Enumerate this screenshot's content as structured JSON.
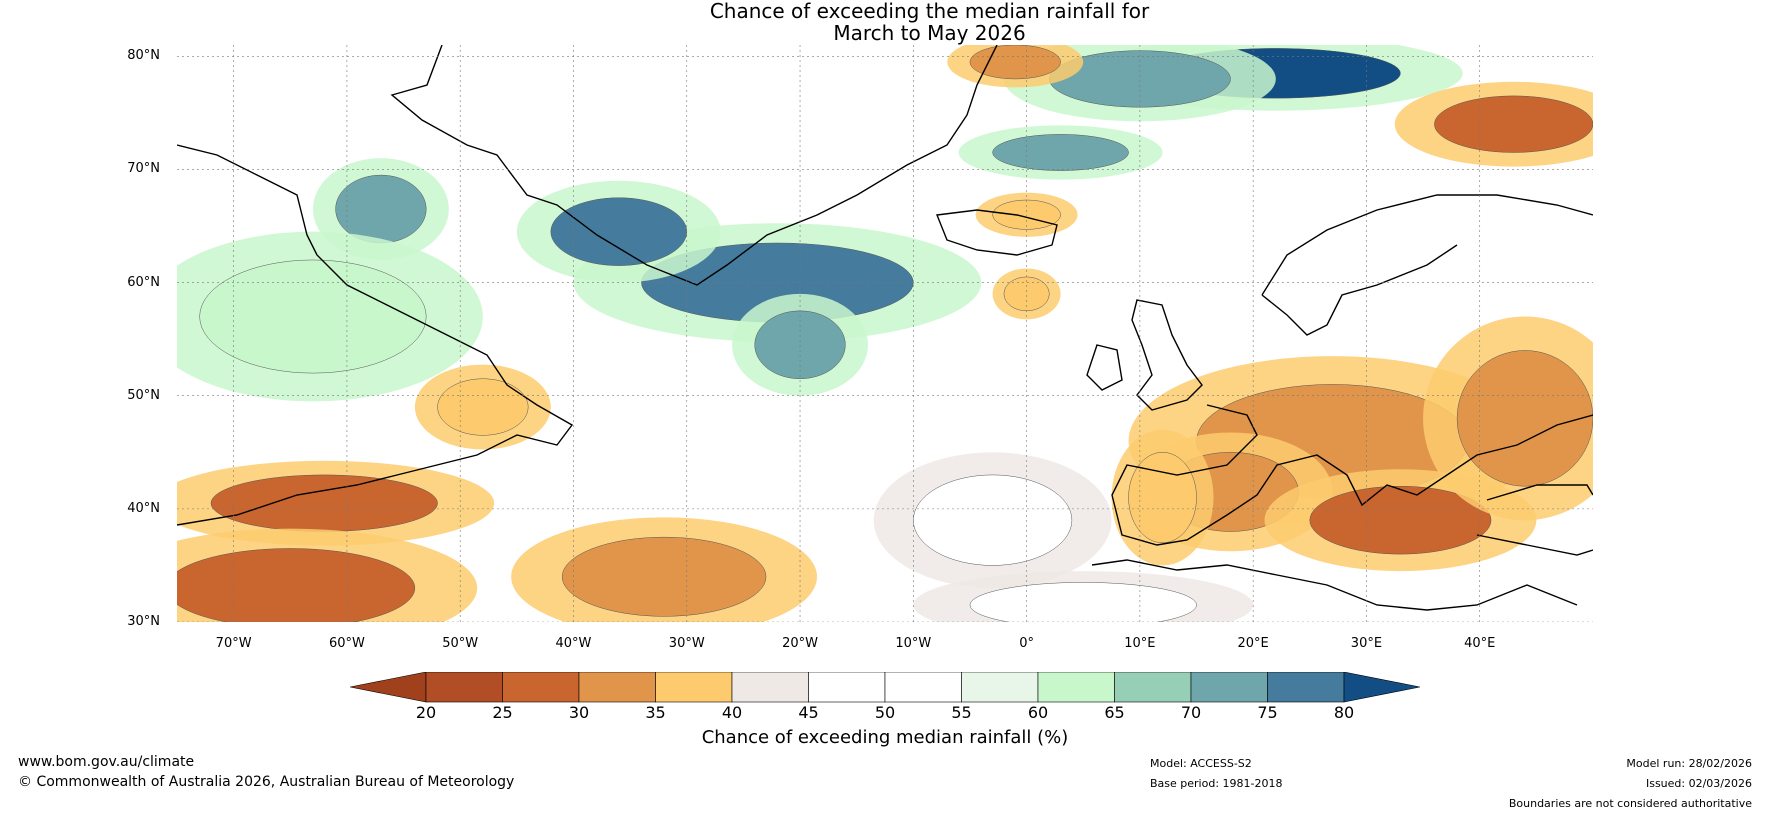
{
  "title": {
    "line1": "Chance of exceeding the median rainfall for",
    "line2": "March to May 2026"
  },
  "map": {
    "lat_labels": [
      "80°N",
      "70°N",
      "60°N",
      "50°N",
      "40°N",
      "30°N"
    ],
    "lon_labels": [
      "70°W",
      "60°W",
      "50°W",
      "40°W",
      "30°W",
      "20°W",
      "10°W",
      "0°",
      "10°E",
      "20°E",
      "30°E",
      "40°E"
    ],
    "lat_range": [
      30,
      81
    ],
    "lon_range": [
      -75,
      50
    ],
    "regions": [
      {
        "name": "greenland-sea-wet",
        "category": 80,
        "lon": 22,
        "lat": 78.5,
        "rx": 11,
        "ry": 2.2
      },
      {
        "name": "svalbard-wet",
        "category": 70,
        "lon": 10,
        "lat": 78,
        "rx": 8,
        "ry": 2.5
      },
      {
        "name": "norwegian-sea-wet",
        "category": 70,
        "lon": 3,
        "lat": 71.5,
        "rx": 6,
        "ry": 1.6
      },
      {
        "name": "iceland-basin-wet",
        "category": 75,
        "lon": -22,
        "lat": 60,
        "rx": 12,
        "ry": 3.5
      },
      {
        "name": "irminger-sea-wet",
        "category": 75,
        "lon": -36,
        "lat": 64.5,
        "rx": 6,
        "ry": 3
      },
      {
        "name": "baffin-wet",
        "category": 70,
        "lon": -57,
        "lat": 66.5,
        "rx": 4,
        "ry": 3
      },
      {
        "name": "rockall-wet",
        "category": 70,
        "lon": -20,
        "lat": 54.5,
        "rx": 4,
        "ry": 3
      },
      {
        "name": "labrador-wet",
        "category": 60,
        "lon": -63,
        "lat": 57,
        "rx": 10,
        "ry": 5
      },
      {
        "name": "barents-dry",
        "category": 25,
        "lon": 43,
        "lat": 74,
        "rx": 7,
        "ry": 2.5
      },
      {
        "name": "east-greenland-dry",
        "category": 30,
        "lon": -1,
        "lat": 79.5,
        "rx": 4,
        "ry": 1.5
      },
      {
        "name": "mid-atlantic-dry-1",
        "category": 35,
        "lon": -48,
        "lat": 49,
        "rx": 4,
        "ry": 2.5
      },
      {
        "name": "newfoundland-dry",
        "category": 25,
        "lon": -62,
        "lat": 40.5,
        "rx": 10,
        "ry": 2.5
      },
      {
        "name": "sargasso-dry",
        "category": 25,
        "lon": -65,
        "lat": 33,
        "rx": 11,
        "ry": 3.5
      },
      {
        "name": "azores-dry",
        "category": 30,
        "lon": -32,
        "lat": 34,
        "rx": 9,
        "ry": 3.5
      },
      {
        "name": "east-europe-dry",
        "category": 30,
        "lon": 27,
        "lat": 46,
        "rx": 12,
        "ry": 5
      },
      {
        "name": "balkans-dry",
        "category": 30,
        "lon": 18,
        "lat": 41.5,
        "rx": 6,
        "ry": 3.5
      },
      {
        "name": "turkey-dry",
        "category": 25,
        "lon": 33,
        "lat": 39,
        "rx": 8,
        "ry": 3
      },
      {
        "name": "caspian-dry",
        "category": 30,
        "lon": 44,
        "lat": 48,
        "rx": 6,
        "ry": 6
      },
      {
        "name": "italy-dry",
        "category": 35,
        "lon": 12,
        "lat": 41,
        "rx": 3,
        "ry": 4
      },
      {
        "name": "iberia-neutral",
        "category": 45,
        "lon": -3,
        "lat": 39,
        "rx": 7,
        "ry": 4
      },
      {
        "name": "north-africa-neutral",
        "category": 45,
        "lon": 5,
        "lat": 31.5,
        "rx": 10,
        "ry": 2
      },
      {
        "name": "north-sea-dry",
        "category": 35,
        "lon": 0,
        "lat": 59,
        "rx": 2,
        "ry": 1.5
      },
      {
        "name": "norwegian-sea-dry",
        "category": 35,
        "lon": 0,
        "lat": 66,
        "rx": 3,
        "ry": 1.3
      }
    ]
  },
  "colorbar": {
    "ticks": [
      "20",
      "25",
      "30",
      "35",
      "40",
      "45",
      "50",
      "55",
      "60",
      "65",
      "70",
      "75",
      "80"
    ],
    "colors": [
      "#a0401d",
      "#b24e26",
      "#c9652f",
      "#e0954a",
      "#fdcb6e",
      "#efe9e5",
      "#ffffff",
      "#ffffff",
      "#e7f6e8",
      "#c9f7cc",
      "#96ceb6",
      "#6ea6ab",
      "#457c9e",
      "#124e84"
    ],
    "title": "Chance of exceeding median rainfall (%)"
  },
  "footer": {
    "website": "www.bom.gov.au/climate",
    "copyright": "© Commonwealth of Australia 2026, Australian Bureau of Meteorology",
    "model": "Model: ACCESS-S2",
    "base_period": "Base period: 1981-2018",
    "model_run": "Model run: 28/02/2026",
    "issued": "Issued: 02/03/2026",
    "disclaimer": "Boundaries are not considered authoritative"
  }
}
